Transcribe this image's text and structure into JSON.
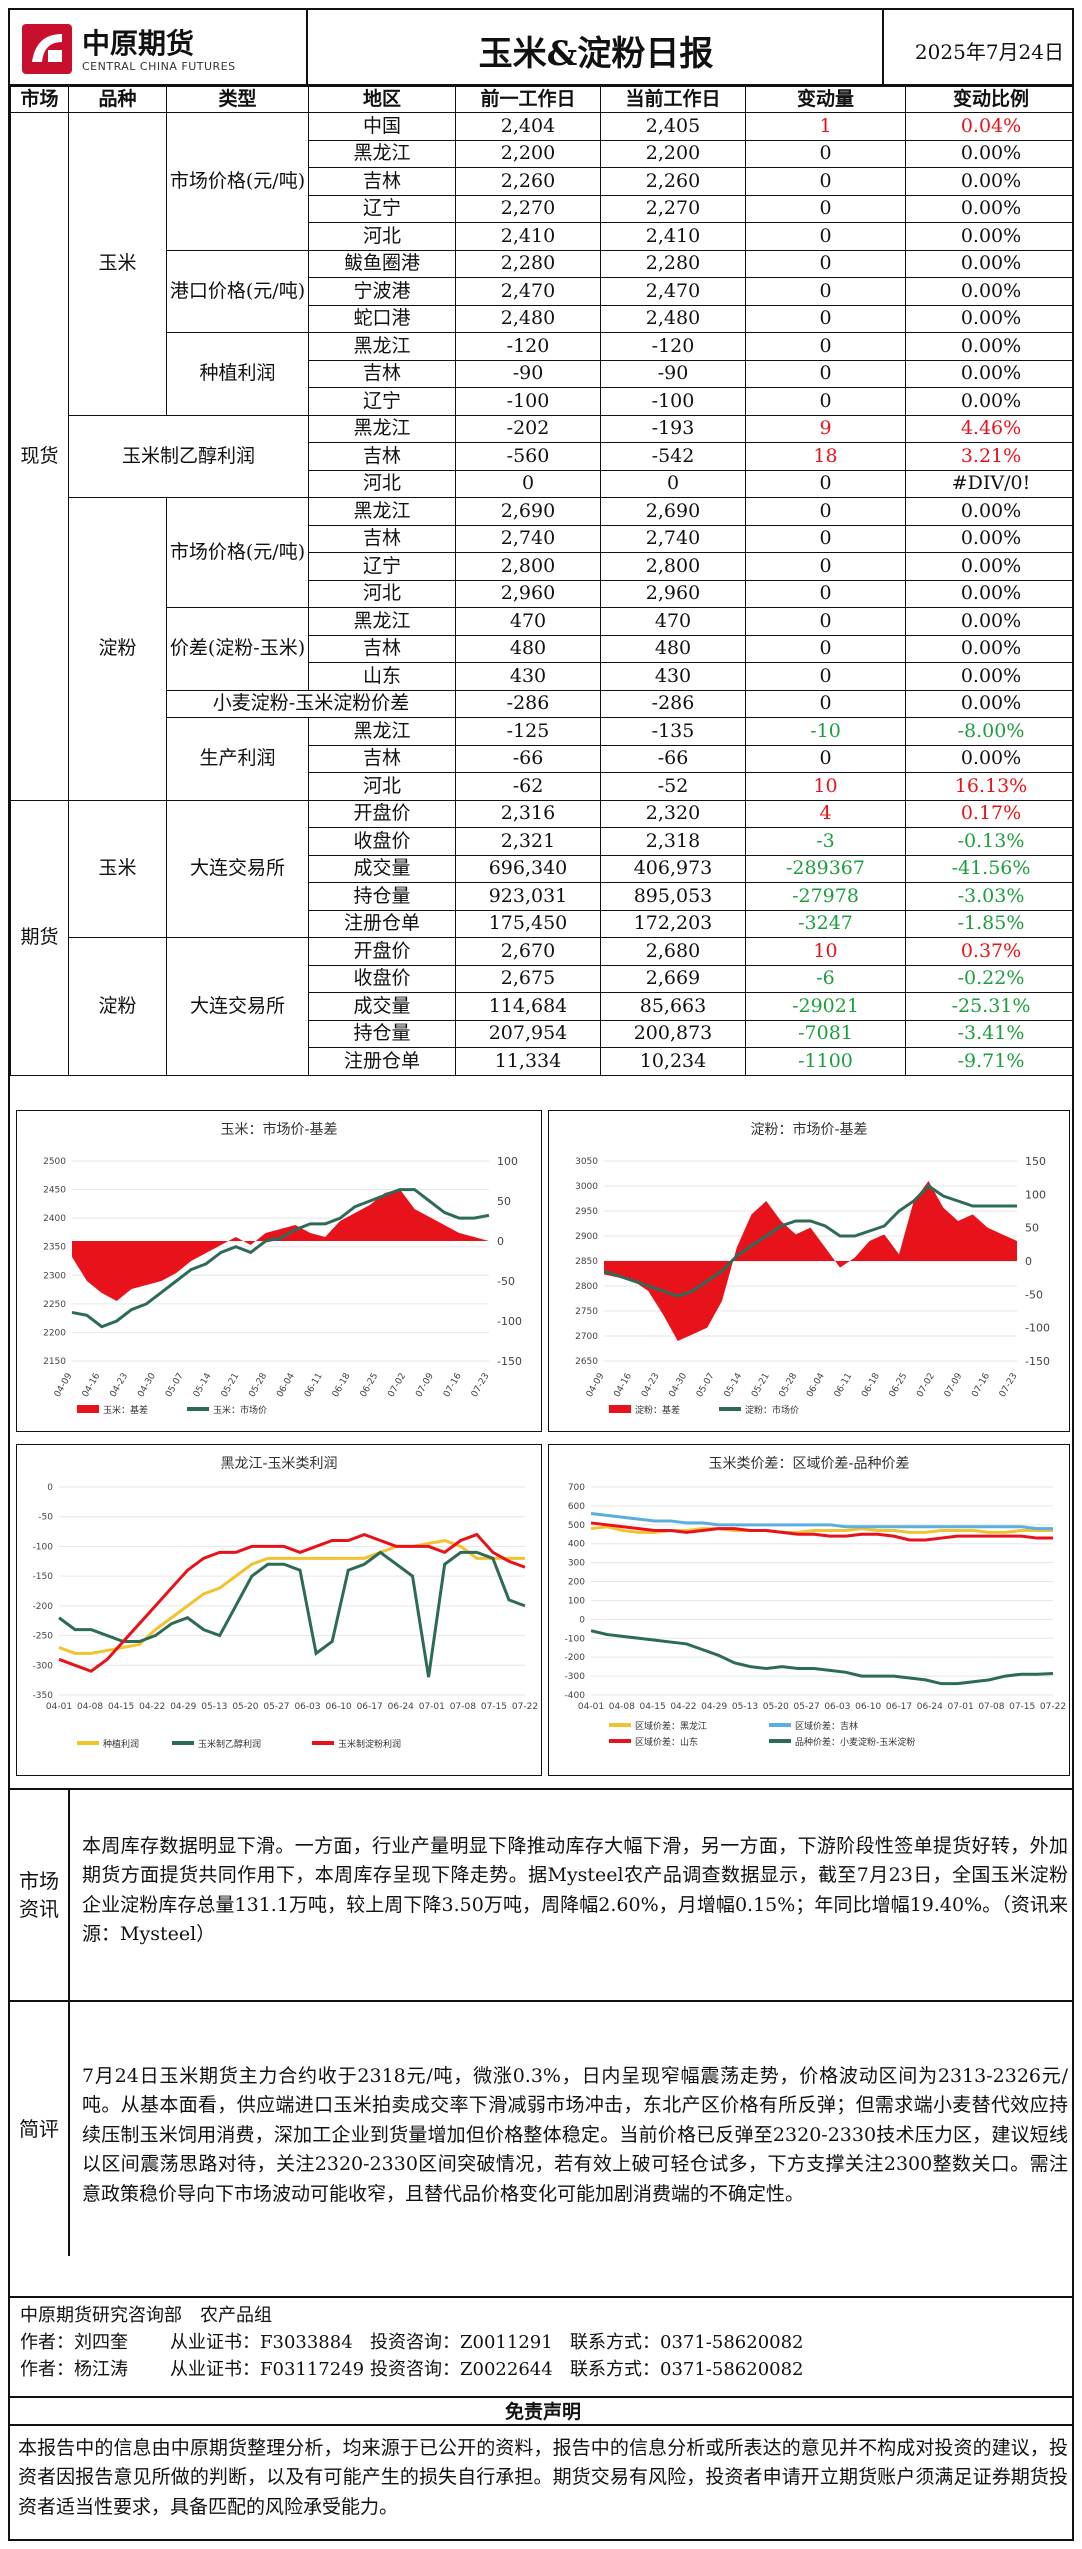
{
  "header": {
    "logo_cn": "中原期货",
    "logo_en": "CENTRAL CHINA FUTURES",
    "title": "玉米&淀粉日报",
    "date": "2025年7月24日"
  },
  "table": {
    "headers": [
      "市场",
      "品种",
      "类型",
      "地区",
      "前一工作日",
      "当前工作日",
      "变动量",
      "变动比例"
    ],
    "spot_label": "现货",
    "futures_label": "期货",
    "corn_label": "玉米",
    "starch_label": "淀粉",
    "market_price_label": "市场价格(元/吨)",
    "port_price_label": "港口价格(元/吨)",
    "planting_profit_label": "种植利润",
    "ethanol_profit_label": "玉米制乙醇利润",
    "spread_label": "价差(淀粉-玉米)",
    "wheat_spread_label": "小麦淀粉-玉米淀粉价差",
    "production_profit_label": "生产利润",
    "exchange_label": "大连交易所",
    "rows": [
      {
        "region": "中国",
        "prev": "2,404",
        "curr": "2,405",
        "chg": "1",
        "pct": "0.04%",
        "color": "red"
      },
      {
        "region": "黑龙江",
        "prev": "2,200",
        "curr": "2,200",
        "chg": "0",
        "pct": "0.00%",
        "color": ""
      },
      {
        "region": "吉林",
        "prev": "2,260",
        "curr": "2,260",
        "chg": "0",
        "pct": "0.00%",
        "color": ""
      },
      {
        "region": "辽宁",
        "prev": "2,270",
        "curr": "2,270",
        "chg": "0",
        "pct": "0.00%",
        "color": ""
      },
      {
        "region": "河北",
        "prev": "2,410",
        "curr": "2,410",
        "chg": "0",
        "pct": "0.00%",
        "color": ""
      },
      {
        "region": "鲅鱼圈港",
        "prev": "2,280",
        "curr": "2,280",
        "chg": "0",
        "pct": "0.00%",
        "color": ""
      },
      {
        "region": "宁波港",
        "prev": "2,470",
        "curr": "2,470",
        "chg": "0",
        "pct": "0.00%",
        "color": ""
      },
      {
        "region": "蛇口港",
        "prev": "2,480",
        "curr": "2,480",
        "chg": "0",
        "pct": "0.00%",
        "color": ""
      },
      {
        "region": "黑龙江",
        "prev": "-120",
        "curr": "-120",
        "chg": "0",
        "pct": "0.00%",
        "color": ""
      },
      {
        "region": "吉林",
        "prev": "-90",
        "curr": "-90",
        "chg": "0",
        "pct": "0.00%",
        "color": ""
      },
      {
        "region": "辽宁",
        "prev": "-100",
        "curr": "-100",
        "chg": "0",
        "pct": "0.00%",
        "color": ""
      },
      {
        "region": "黑龙江",
        "prev": "-202",
        "curr": "-193",
        "chg": "9",
        "pct": "4.46%",
        "color": "red"
      },
      {
        "region": "吉林",
        "prev": "-560",
        "curr": "-542",
        "chg": "18",
        "pct": "3.21%",
        "color": "red"
      },
      {
        "region": "河北",
        "prev": "0",
        "curr": "0",
        "chg": "0",
        "pct": "#DIV/0!",
        "color": ""
      },
      {
        "region": "黑龙江",
        "prev": "2,690",
        "curr": "2,690",
        "chg": "0",
        "pct": "0.00%",
        "color": ""
      },
      {
        "region": "吉林",
        "prev": "2,740",
        "curr": "2,740",
        "chg": "0",
        "pct": "0.00%",
        "color": ""
      },
      {
        "region": "辽宁",
        "prev": "2,800",
        "curr": "2,800",
        "chg": "0",
        "pct": "0.00%",
        "color": ""
      },
      {
        "region": "河北",
        "prev": "2,960",
        "curr": "2,960",
        "chg": "0",
        "pct": "0.00%",
        "color": ""
      },
      {
        "region": "黑龙江",
        "prev": "470",
        "curr": "470",
        "chg": "0",
        "pct": "0.00%",
        "color": ""
      },
      {
        "region": "吉林",
        "prev": "480",
        "curr": "480",
        "chg": "0",
        "pct": "0.00%",
        "color": ""
      },
      {
        "region": "山东",
        "prev": "430",
        "curr": "430",
        "chg": "0",
        "pct": "0.00%",
        "color": ""
      },
      {
        "region": "",
        "prev": "-286",
        "curr": "-286",
        "chg": "0",
        "pct": "0.00%",
        "color": ""
      },
      {
        "region": "黑龙江",
        "prev": "-125",
        "curr": "-135",
        "chg": "-10",
        "pct": "-8.00%",
        "color": "green"
      },
      {
        "region": "吉林",
        "prev": "-66",
        "curr": "-66",
        "chg": "0",
        "pct": "0.00%",
        "color": ""
      },
      {
        "region": "河北",
        "prev": "-62",
        "curr": "-52",
        "chg": "10",
        "pct": "16.13%",
        "color": "red"
      },
      {
        "region": "开盘价",
        "prev": "2,316",
        "curr": "2,320",
        "chg": "4",
        "pct": "0.17%",
        "color": "red"
      },
      {
        "region": "收盘价",
        "prev": "2,321",
        "curr": "2,318",
        "chg": "-3",
        "pct": "-0.13%",
        "color": "green"
      },
      {
        "region": "成交量",
        "prev": "696,340",
        "curr": "406,973",
        "chg": "-289367",
        "pct": "-41.56%",
        "color": "green"
      },
      {
        "region": "持仓量",
        "prev": "923,031",
        "curr": "895,053",
        "chg": "-27978",
        "pct": "-3.03%",
        "color": "green"
      },
      {
        "region": "注册仓单",
        "prev": "175,450",
        "curr": "172,203",
        "chg": "-3247",
        "pct": "-1.85%",
        "color": "green"
      },
      {
        "region": "开盘价",
        "prev": "2,670",
        "curr": "2,680",
        "chg": "10",
        "pct": "0.37%",
        "color": "red"
      },
      {
        "region": "收盘价",
        "prev": "2,675",
        "curr": "2,669",
        "chg": "-6",
        "pct": "-0.22%",
        "color": "green"
      },
      {
        "region": "成交量",
        "prev": "114,684",
        "curr": "85,663",
        "chg": "-29021",
        "pct": "-25.31%",
        "color": "green"
      },
      {
        "region": "持仓量",
        "prev": "207,954",
        "curr": "200,873",
        "chg": "-7081",
        "pct": "-3.41%",
        "color": "green"
      },
      {
        "region": "注册仓单",
        "prev": "11,334",
        "curr": "10,234",
        "chg": "-1100",
        "pct": "-9.71%",
        "color": "green"
      }
    ]
  },
  "colors": {
    "up": "#e8121a",
    "down": "#1e9e3e",
    "basis_fill": "#e8121a",
    "price_line": "#2e6b57"
  },
  "chart_data": [
    {
      "type": "area",
      "title": "玉米：市场价-基差",
      "x_ticks": [
        "04-09",
        "04-16",
        "04-23",
        "04-30",
        "05-07",
        "05-14",
        "05-21",
        "05-28",
        "06-04",
        "06-11",
        "06-18",
        "06-25",
        "07-02",
        "07-09",
        "07-16",
        "07-23"
      ],
      "y_left_ticks": [
        2500,
        2450,
        2400,
        2350,
        2300,
        2250,
        2200,
        2150
      ],
      "y_right_ticks": [
        100,
        50,
        0,
        -50,
        -100,
        -150
      ],
      "ylim_left": [
        2150,
        2500
      ],
      "ylim_right": [
        -150,
        100
      ],
      "series": [
        {
          "name": "玉米：基差",
          "kind": "area",
          "axis": "right",
          "values": [
            -20,
            -50,
            -65,
            -75,
            -60,
            -55,
            -50,
            -40,
            -25,
            -15,
            -5,
            5,
            -5,
            10,
            15,
            20,
            10,
            5,
            25,
            35,
            45,
            60,
            65,
            40,
            30,
            20,
            10,
            5,
            0
          ]
        },
        {
          "name": "玉米：市场价",
          "kind": "line",
          "axis": "left",
          "values": [
            2235,
            2230,
            2210,
            2220,
            2240,
            2250,
            2270,
            2290,
            2310,
            2320,
            2340,
            2350,
            2340,
            2360,
            2365,
            2380,
            2390,
            2390,
            2400,
            2420,
            2430,
            2440,
            2450,
            2450,
            2430,
            2410,
            2400,
            2400,
            2405
          ]
        }
      ]
    },
    {
      "type": "area",
      "title": "淀粉：市场价-基差",
      "x_ticks": [
        "04-09",
        "04-16",
        "04-23",
        "04-30",
        "05-07",
        "05-14",
        "05-21",
        "05-28",
        "06-04",
        "06-11",
        "06-18",
        "06-25",
        "07-02",
        "07-09",
        "07-16",
        "07-23"
      ],
      "y_left_ticks": [
        3050,
        3000,
        2950,
        2900,
        2850,
        2800,
        2750,
        2700,
        2650
      ],
      "y_right_ticks": [
        150,
        100,
        50,
        0,
        -50,
        -100,
        -150
      ],
      "ylim_left": [
        2650,
        3050
      ],
      "ylim_right": [
        -150,
        150
      ],
      "series": [
        {
          "name": "淀粉：基差",
          "kind": "area",
          "axis": "right",
          "values": [
            -20,
            -25,
            -30,
            -45,
            -80,
            -120,
            -110,
            -100,
            -60,
            20,
            70,
            90,
            60,
            40,
            50,
            20,
            -10,
            5,
            30,
            40,
            10,
            90,
            120,
            80,
            60,
            70,
            50,
            40,
            30
          ]
        },
        {
          "name": "淀粉：市场价",
          "kind": "line",
          "axis": "left",
          "values": [
            2830,
            2820,
            2810,
            2800,
            2790,
            2780,
            2790,
            2810,
            2830,
            2860,
            2880,
            2900,
            2920,
            2930,
            2930,
            2920,
            2900,
            2900,
            2910,
            2920,
            2950,
            2970,
            3000,
            2980,
            2970,
            2960,
            2960,
            2960,
            2960
          ]
        }
      ]
    },
    {
      "type": "line",
      "title": "黑龙江-玉米类利润",
      "x_ticks": [
        "04-01",
        "04-08",
        "04-15",
        "04-22",
        "04-29",
        "05-13",
        "05-20",
        "05-27",
        "06-03",
        "06-10",
        "06-17",
        "06-24",
        "07-01",
        "07-08",
        "07-15",
        "07-22"
      ],
      "y_ticks": [
        0,
        -50,
        -100,
        -150,
        -200,
        -250,
        -300,
        -350
      ],
      "ylim": [
        -350,
        0
      ],
      "series": [
        {
          "name": "种植利润",
          "values": [
            -270,
            -280,
            -280,
            -275,
            -270,
            -265,
            -240,
            -220,
            -200,
            -180,
            -170,
            -150,
            -130,
            -120,
            -120,
            -120,
            -120,
            -120,
            -120,
            -120,
            -110,
            -100,
            -100,
            -95,
            -90,
            -100,
            -120,
            -120,
            -120,
            -120
          ]
        },
        {
          "name": "玉米制乙醇利润",
          "values": [
            -220,
            -240,
            -240,
            -250,
            -260,
            -260,
            -250,
            -230,
            -220,
            -240,
            -250,
            -200,
            -150,
            -130,
            -130,
            -140,
            -280,
            -260,
            -140,
            -130,
            -110,
            -130,
            -150,
            -320,
            -130,
            -110,
            -110,
            -120,
            -190,
            -200
          ]
        },
        {
          "name": "玉米制淀粉利润",
          "values": [
            -290,
            -300,
            -310,
            -290,
            -260,
            -230,
            -200,
            -170,
            -140,
            -120,
            -110,
            -110,
            -100,
            -100,
            -100,
            -110,
            -100,
            -90,
            -90,
            -80,
            -90,
            -100,
            -100,
            -100,
            -110,
            -90,
            -80,
            -110,
            -125,
            -135
          ]
        }
      ]
    },
    {
      "type": "line",
      "title": "玉米类价差：区域价差-品种价差",
      "x_ticks": [
        "04-01",
        "04-08",
        "04-15",
        "04-22",
        "04-29",
        "05-13",
        "05-20",
        "05-27",
        "06-03",
        "06-10",
        "06-17",
        "06-24",
        "07-01",
        "07-08",
        "07-15",
        "07-22"
      ],
      "y_ticks": [
        700,
        600,
        500,
        400,
        300,
        200,
        100,
        0,
        -100,
        -200,
        -300,
        -400
      ],
      "ylim": [
        -400,
        700
      ],
      "series": [
        {
          "name": "区域价差：黑龙江",
          "values": [
            480,
            490,
            470,
            460,
            460,
            470,
            470,
            480,
            480,
            470,
            470,
            470,
            460,
            460,
            470,
            470,
            470,
            480,
            470,
            470,
            460,
            460,
            470,
            470,
            470,
            460,
            460,
            470,
            470,
            470
          ]
        },
        {
          "name": "区域价差：吉林",
          "values": [
            560,
            550,
            540,
            530,
            520,
            520,
            510,
            510,
            500,
            500,
            500,
            500,
            500,
            500,
            500,
            500,
            490,
            490,
            490,
            490,
            490,
            490,
            490,
            490,
            490,
            490,
            490,
            490,
            480,
            480
          ]
        },
        {
          "name": "区域价差：山东",
          "values": [
            510,
            500,
            490,
            480,
            470,
            470,
            460,
            470,
            480,
            480,
            470,
            470,
            460,
            450,
            450,
            440,
            440,
            450,
            450,
            440,
            420,
            420,
            430,
            440,
            440,
            440,
            440,
            440,
            430,
            430
          ]
        },
        {
          "name": "品种价差：小麦淀粉-玉米淀粉",
          "values": [
            -60,
            -80,
            -90,
            -100,
            -110,
            -120,
            -130,
            -160,
            -190,
            -230,
            -250,
            -260,
            -250,
            -260,
            -260,
            -270,
            -280,
            -300,
            -300,
            -300,
            -310,
            -320,
            -340,
            -340,
            -330,
            -320,
            -300,
            -290,
            -290,
            -286
          ]
        }
      ]
    }
  ],
  "sections": {
    "news_label": "市场资讯",
    "news_text": "本周库存数据明显下滑。一方面，行业产量明显下降推动库存大幅下滑，另一方面，下游阶段性签单提货好转，外加期货方面提货共同作用下，本周库存呈现下降走势。据Mysteel农产品调查数据显示，截至7月23日，全国玉米淀粉企业淀粉库存总量131.1万吨，较上周下降3.50万吨，周降幅2.60%，月增幅0.15%；年同比增幅19.40%。（资讯来源：Mysteel）",
    "comment_label": "简评",
    "comment_text": "7月24日玉米期货主力合约收于2318元/吨，微涨0.3%，日内呈现窄幅震荡走势，价格波动区间为2313-2326元/吨。从基本面看，供应端进口玉米拍卖成交率下滑减弱市场冲击，东北产区价格有所反弹；但需求端小麦替代效应持续压制玉米饲用消费，深加工企业到货量增加但价格整体稳定。当前价格已反弹至2320-2330技术压力区，建议短线以区间震荡思路对待，关注2320-2330区间突破情况，若有效上破可轻仓试多，下方支撑关注2300整数关口。需注意政策稳价导向下市场波动可能收窄，且替代品价格变化可能加剧消费端的不确定性。"
  },
  "footer": {
    "dept": "中原期货研究咨询部　农产品组",
    "authors": [
      {
        "author": "作者：刘四奎",
        "cert": "从业证书：F3033884",
        "invest": "投资咨询：Z0011291",
        "contact": "联系方式：0371-58620082"
      },
      {
        "author": "作者：杨江涛",
        "cert": "从业证书：F03117249",
        "invest": "投资咨询：Z0022644",
        "contact": "联系方式：0371-58620082"
      }
    ],
    "disclaimer_title": "免责声明",
    "disclaimer_text": "本报告中的信息由中原期货整理分析，均来源于已公开的资料，报告中的信息分析或所表达的意见并不构成对投资的建议，投资者因报告意见所做的判断，以及有可能产生的损失自行承担。期货交易有风险，投资者申请开立期货账户须满足证券期货投资者适当性要求，具备匹配的风险承受能力。"
  }
}
